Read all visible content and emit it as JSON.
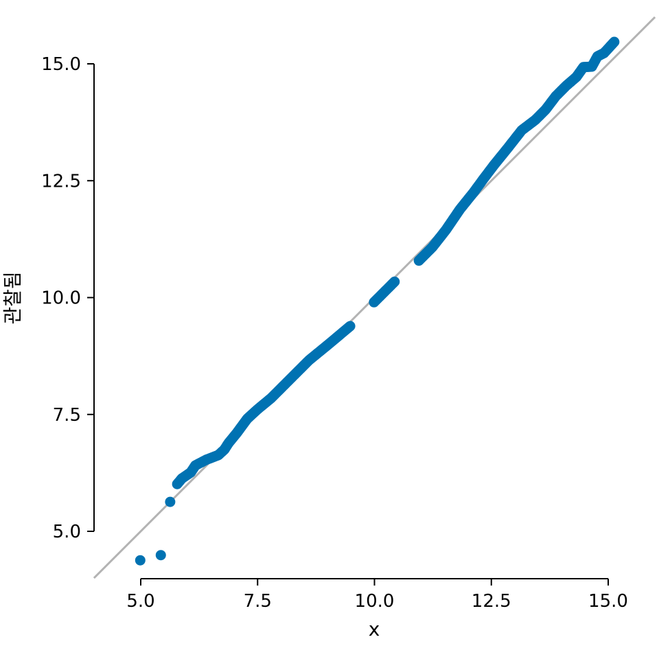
{
  "chart_data": {
    "type": "scatter",
    "title": "",
    "xlabel": "x",
    "ylabel": "관찰됨",
    "xlim": [
      4.0,
      16.0
    ],
    "ylim": [
      4.0,
      16.0
    ],
    "x_ticks": [
      "5.0",
      "7.5",
      "10.0",
      "12.5",
      "15.0"
    ],
    "y_ticks": [
      "5.0",
      "7.5",
      "10.0",
      "12.5",
      "15.0"
    ],
    "grid": false,
    "reference_line": {
      "from": [
        4.0,
        4.0
      ],
      "to": [
        16.0,
        16.0
      ],
      "color": "#b3b3b3"
    },
    "marker_color": "#0072b2",
    "points": [
      [
        4.99,
        4.38
      ],
      [
        5.43,
        4.49
      ],
      [
        5.63,
        5.63
      ],
      [
        5.78,
        6.01
      ],
      [
        5.88,
        6.13
      ],
      [
        6.07,
        6.26
      ],
      [
        6.17,
        6.41
      ],
      [
        6.4,
        6.53
      ],
      [
        6.66,
        6.63
      ],
      [
        6.79,
        6.75
      ],
      [
        6.88,
        6.89
      ],
      [
        7.06,
        7.11
      ],
      [
        7.28,
        7.41
      ],
      [
        7.5,
        7.61
      ],
      [
        7.79,
        7.85
      ],
      [
        8.01,
        8.07
      ],
      [
        8.3,
        8.36
      ],
      [
        8.6,
        8.66
      ],
      [
        9.04,
        9.02
      ],
      [
        9.48,
        9.39
      ],
      [
        9.99,
        9.9
      ],
      [
        10.43,
        10.34
      ],
      [
        10.95,
        10.79
      ],
      [
        11.24,
        11.08
      ],
      [
        11.53,
        11.45
      ],
      [
        11.83,
        11.89
      ],
      [
        12.12,
        12.25
      ],
      [
        12.34,
        12.55
      ],
      [
        12.56,
        12.84
      ],
      [
        12.86,
        13.21
      ],
      [
        13.15,
        13.58
      ],
      [
        13.44,
        13.8
      ],
      [
        13.66,
        14.02
      ],
      [
        13.88,
        14.31
      ],
      [
        14.1,
        14.53
      ],
      [
        14.32,
        14.72
      ],
      [
        14.47,
        14.93
      ],
      [
        14.65,
        14.94
      ],
      [
        14.77,
        15.16
      ],
      [
        14.91,
        15.23
      ],
      [
        15.13,
        15.47
      ]
    ]
  }
}
